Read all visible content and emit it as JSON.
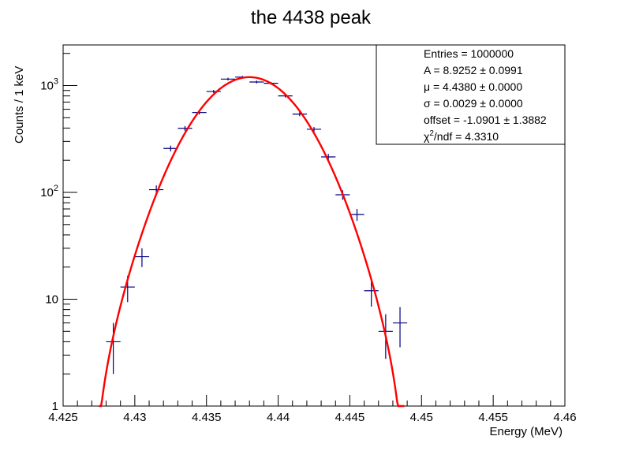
{
  "chart_data": {
    "type": "scatter",
    "title": "the 4438 peak",
    "xlabel": "Energy (MeV)",
    "ylabel": "Counts / 1 keV",
    "xlim": [
      4.425,
      4.46
    ],
    "ylim": [
      1,
      2400
    ],
    "yscale": "log",
    "grid": false,
    "x_tick_labels": [
      "4.425",
      "4.43",
      "4.435",
      "4.44",
      "4.445",
      "4.45",
      "4.455",
      "4.46"
    ],
    "x_tick_values": [
      4.425,
      4.43,
      4.435,
      4.44,
      4.445,
      4.45,
      4.455,
      4.46
    ],
    "y_tick_values": [
      1,
      10,
      100,
      1000
    ],
    "y_tick_labels": [
      {
        "base": "1",
        "exp": ""
      },
      {
        "base": "10",
        "exp": ""
      },
      {
        "base": "10",
        "exp": "2"
      },
      {
        "base": "10",
        "exp": "3"
      }
    ],
    "series": [
      {
        "type": "errorbar",
        "color": "#000080",
        "bin_width": 0.001,
        "x": [
          4.4285,
          4.4295,
          4.4305,
          4.4315,
          4.4325,
          4.4335,
          4.4345,
          4.4355,
          4.4365,
          4.4375,
          4.4385,
          4.4395,
          4.4405,
          4.4415,
          4.4425,
          4.4435,
          4.4445,
          4.4455,
          4.4465,
          4.4475,
          4.4485
        ],
        "y": [
          4,
          13,
          25,
          106,
          258,
          398,
          560,
          880,
          1150,
          1200,
          1080,
          1050,
          800,
          540,
          390,
          215,
          95,
          62,
          12,
          5,
          6
        ]
      },
      {
        "type": "line",
        "color": "#ff0000",
        "A": 8.9252,
        "mu": 4.438,
        "sigma": 0.0029,
        "offset": -1.0901,
        "x_from": 4.4275,
        "x_to": 4.4488
      }
    ],
    "stats_box": {
      "placement": "top-right",
      "entries": "Entries = 1000000",
      "amp": "A = 8.9252 ± 0.0991",
      "mu": "μ = 4.4380 ± 0.0000",
      "sigma": "σ = 0.0029 ± 0.0000",
      "offset": "offset = -1.0901 ± 1.3882",
      "chi_base": "χ",
      "chi_exp": "2",
      "chi_rest": "/ndf = 4.3310"
    }
  }
}
